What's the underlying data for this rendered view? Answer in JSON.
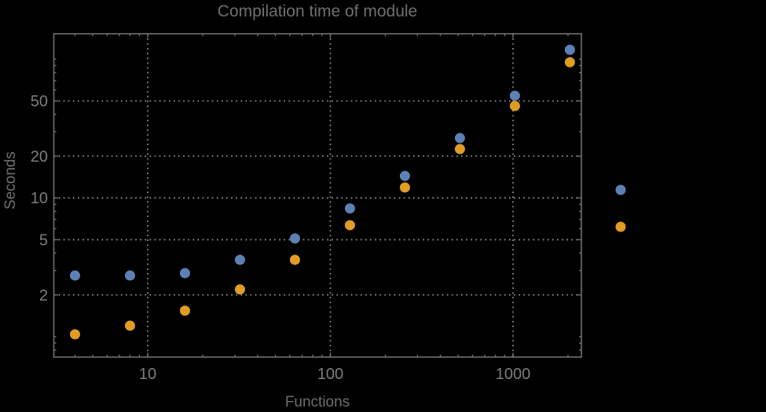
{
  "title": "Compilation time of module",
  "axes": {
    "x_label": "Functions",
    "y_label": "Seconds"
  },
  "style": {
    "background": "#000000",
    "frame_color": "#707070",
    "grid_color": "#8f8f8f",
    "tick_label_color": "#7d7d7d",
    "title_color": "#6f6f6f"
  },
  "chart_data": {
    "type": "scatter",
    "title": "Compilation time of module",
    "xlabel": "Functions",
    "ylabel": "Seconds",
    "x_scale": "log",
    "y_scale": "log",
    "grid": "dotted",
    "x_range": [
      3.05,
      2360
    ],
    "y_range": [
      0.72,
      152
    ],
    "x": [
      4,
      8,
      16,
      32,
      64,
      128,
      256,
      512,
      1024,
      2048
    ],
    "series": [
      {
        "name": "blue-series",
        "color": "#5e81b5",
        "values": [
          2.76,
          2.76,
          2.87,
          3.58,
          5.1,
          8.4,
          14.4,
          27,
          54.5,
          117
        ]
      },
      {
        "name": "orange-series",
        "color": "#e19c24",
        "values": [
          1.04,
          1.2,
          1.54,
          2.19,
          3.58,
          6.36,
          11.9,
          22.5,
          46,
          95
        ]
      }
    ],
    "x_ticks": {
      "major": [
        10,
        100,
        1000
      ],
      "labels": [
        "10",
        "100",
        "1000"
      ]
    },
    "y_ticks": {
      "major": [
        2,
        5,
        10,
        20,
        50
      ],
      "labels": [
        "2",
        "5",
        "10",
        "20",
        "50"
      ]
    },
    "legend": {
      "position": "right-outside",
      "labels_visible": false,
      "markers": [
        {
          "name": "blue-series",
          "color": "#5e81b5"
        },
        {
          "name": "orange-series",
          "color": "#e19c24"
        }
      ]
    }
  }
}
